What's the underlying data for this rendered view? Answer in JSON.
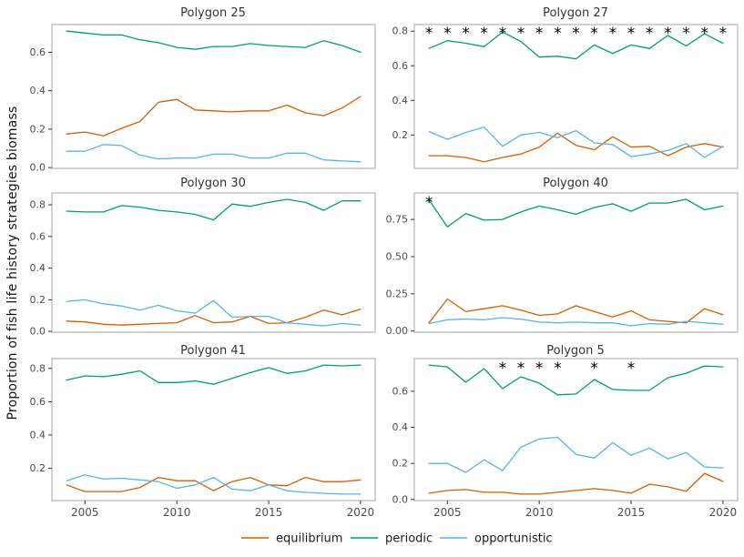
{
  "figure": {
    "y_axis_label": "Proportion of fish life history strategies biomass",
    "x_ticks": [
      2005,
      2010,
      2015,
      2020
    ],
    "x_tick_labels": [
      "2005",
      "2010",
      "2015",
      "2020"
    ],
    "significance_symbol": "*"
  },
  "legend": {
    "items": [
      {
        "label": "equilibrium",
        "color": "#D55E00"
      },
      {
        "label": "periodic",
        "color": "#009E73"
      },
      {
        "label": "opportunistic",
        "color": "#56B4E9"
      }
    ]
  },
  "chart_data": [
    {
      "type": "line",
      "title": "Polygon 25",
      "x": [
        2004,
        2005,
        2006,
        2007,
        2008,
        2009,
        2010,
        2011,
        2012,
        2013,
        2014,
        2015,
        2016,
        2017,
        2018,
        2019,
        2020
      ],
      "xlim": [
        2003.2,
        2020.8
      ],
      "ylim": [
        -0.004,
        0.744
      ],
      "yticks": [
        "0.0",
        "0.2",
        "0.4",
        "0.6"
      ],
      "grid": false,
      "series": [
        {
          "name": "equilibrium",
          "values": [
            0.175,
            0.185,
            0.165,
            0.205,
            0.24,
            0.34,
            0.355,
            0.3,
            0.295,
            0.29,
            0.295,
            0.295,
            0.325,
            0.285,
            0.27,
            0.31,
            0.37
          ]
        },
        {
          "name": "periodic",
          "values": [
            0.71,
            0.7,
            0.69,
            0.69,
            0.665,
            0.65,
            0.625,
            0.615,
            0.63,
            0.63,
            0.645,
            0.635,
            0.63,
            0.625,
            0.66,
            0.635,
            0.6
          ]
        },
        {
          "name": "opportunistic",
          "values": [
            0.085,
            0.085,
            0.12,
            0.115,
            0.065,
            0.045,
            0.05,
            0.05,
            0.07,
            0.07,
            0.05,
            0.05,
            0.075,
            0.075,
            0.04,
            0.035,
            0.03
          ]
        }
      ],
      "significant_years": [],
      "significance_y": null
    },
    {
      "type": "line",
      "title": "Polygon 27",
      "x": [
        2004,
        2005,
        2006,
        2007,
        2008,
        2009,
        2010,
        2011,
        2012,
        2013,
        2014,
        2015,
        2016,
        2017,
        2018,
        2019,
        2020
      ],
      "xlim": [
        2003.2,
        2020.8
      ],
      "ylim": [
        0.007,
        0.838
      ],
      "yticks": [
        "0.2",
        "0.4",
        "0.6",
        "0.8"
      ],
      "grid": false,
      "series": [
        {
          "name": "equilibrium",
          "values": [
            0.08,
            0.08,
            0.07,
            0.045,
            0.07,
            0.09,
            0.13,
            0.21,
            0.14,
            0.115,
            0.19,
            0.13,
            0.135,
            0.08,
            0.13,
            0.15,
            0.13
          ]
        },
        {
          "name": "periodic",
          "values": [
            0.7,
            0.745,
            0.73,
            0.71,
            0.795,
            0.74,
            0.65,
            0.655,
            0.64,
            0.72,
            0.67,
            0.72,
            0.7,
            0.775,
            0.715,
            0.785,
            0.73
          ]
        },
        {
          "name": "opportunistic",
          "values": [
            0.22,
            0.175,
            0.215,
            0.245,
            0.135,
            0.2,
            0.215,
            0.185,
            0.225,
            0.155,
            0.145,
            0.075,
            0.09,
            0.11,
            0.15,
            0.07,
            0.135
          ]
        }
      ],
      "significant_years": [
        2004,
        2005,
        2006,
        2007,
        2008,
        2009,
        2010,
        2011,
        2012,
        2013,
        2014,
        2015,
        2016,
        2017,
        2018,
        2019,
        2020
      ],
      "significance_y": 0.8
    },
    {
      "type": "line",
      "title": "Polygon 30",
      "x": [
        2004,
        2005,
        2006,
        2007,
        2008,
        2009,
        2010,
        2011,
        2012,
        2013,
        2014,
        2015,
        2016,
        2017,
        2018,
        2019,
        2020
      ],
      "xlim": [
        2003.2,
        2020.8
      ],
      "ylim": [
        -0.005,
        0.875
      ],
      "yticks": [
        "0.0",
        "0.2",
        "0.4",
        "0.6",
        "0.8"
      ],
      "grid": false,
      "series": [
        {
          "name": "equilibrium",
          "values": [
            0.065,
            0.06,
            0.045,
            0.04,
            0.045,
            0.05,
            0.055,
            0.1,
            0.055,
            0.06,
            0.095,
            0.05,
            0.055,
            0.09,
            0.135,
            0.105,
            0.14
          ]
        },
        {
          "name": "periodic",
          "values": [
            0.76,
            0.755,
            0.755,
            0.795,
            0.785,
            0.765,
            0.755,
            0.74,
            0.705,
            0.805,
            0.79,
            0.815,
            0.835,
            0.815,
            0.765,
            0.825,
            0.825
          ]
        },
        {
          "name": "opportunistic",
          "values": [
            0.19,
            0.2,
            0.175,
            0.16,
            0.135,
            0.165,
            0.13,
            0.115,
            0.195,
            0.09,
            0.095,
            0.095,
            0.055,
            0.045,
            0.035,
            0.05,
            0.04
          ]
        }
      ],
      "significant_years": [],
      "significance_y": null
    },
    {
      "type": "line",
      "title": "Polygon 40",
      "x": [
        2004,
        2005,
        2006,
        2007,
        2008,
        2009,
        2010,
        2011,
        2012,
        2013,
        2014,
        2015,
        2016,
        2017,
        2018,
        2019,
        2020
      ],
      "xlim": [
        2003.2,
        2020.8
      ],
      "ylim": [
        -0.008,
        0.928
      ],
      "yticks": [
        "0.00",
        "0.25",
        "0.50",
        "0.75"
      ],
      "grid": false,
      "series": [
        {
          "name": "equilibrium",
          "values": [
            0.055,
            0.215,
            0.13,
            0.15,
            0.17,
            0.14,
            0.105,
            0.115,
            0.17,
            0.13,
            0.095,
            0.135,
            0.075,
            0.065,
            0.055,
            0.15,
            0.11
          ]
        },
        {
          "name": "periodic",
          "values": [
            0.88,
            0.7,
            0.79,
            0.745,
            0.75,
            0.8,
            0.84,
            0.815,
            0.785,
            0.83,
            0.855,
            0.805,
            0.86,
            0.86,
            0.885,
            0.815,
            0.84
          ]
        },
        {
          "name": "opportunistic",
          "values": [
            0.05,
            0.075,
            0.08,
            0.075,
            0.09,
            0.08,
            0.06,
            0.055,
            0.06,
            0.055,
            0.055,
            0.035,
            0.05,
            0.045,
            0.065,
            0.055,
            0.045
          ]
        }
      ],
      "significant_years": [
        2004
      ],
      "significance_y": 0.88
    },
    {
      "type": "line",
      "title": "Polygon 41",
      "x": [
        2004,
        2005,
        2006,
        2007,
        2008,
        2009,
        2010,
        2011,
        2012,
        2013,
        2014,
        2015,
        2016,
        2017,
        2018,
        2019,
        2020
      ],
      "xlim": [
        2003.2,
        2020.8
      ],
      "ylim": [
        0.006,
        0.859
      ],
      "yticks": [
        "0.2",
        "0.4",
        "0.6",
        "0.8"
      ],
      "grid": false,
      "series": [
        {
          "name": "equilibrium",
          "values": [
            0.1,
            0.06,
            0.06,
            0.06,
            0.085,
            0.145,
            0.125,
            0.125,
            0.065,
            0.12,
            0.145,
            0.1,
            0.095,
            0.145,
            0.12,
            0.12,
            0.13
          ]
        },
        {
          "name": "periodic",
          "values": [
            0.73,
            0.755,
            0.75,
            0.765,
            0.785,
            0.715,
            0.715,
            0.725,
            0.705,
            0.74,
            0.775,
            0.805,
            0.77,
            0.785,
            0.82,
            0.815,
            0.82
          ]
        },
        {
          "name": "opportunistic",
          "values": [
            0.125,
            0.16,
            0.135,
            0.14,
            0.13,
            0.12,
            0.08,
            0.1,
            0.145,
            0.075,
            0.065,
            0.1,
            0.065,
            0.055,
            0.05,
            0.045,
            0.045
          ]
        }
      ],
      "significant_years": [],
      "significance_y": null
    },
    {
      "type": "line",
      "title": "Polygon 5",
      "x": [
        2004,
        2005,
        2006,
        2007,
        2008,
        2009,
        2010,
        2011,
        2012,
        2013,
        2014,
        2015,
        2016,
        2017,
        2018,
        2019,
        2020
      ],
      "xlim": [
        2003.2,
        2020.8
      ],
      "ylim": [
        -0.006,
        0.781
      ],
      "yticks": [
        "0.0",
        "0.2",
        "0.4",
        "0.6"
      ],
      "grid": false,
      "series": [
        {
          "name": "equilibrium",
          "values": [
            0.035,
            0.05,
            0.055,
            0.04,
            0.04,
            0.03,
            0.03,
            0.04,
            0.05,
            0.06,
            0.05,
            0.035,
            0.085,
            0.07,
            0.045,
            0.145,
            0.1
          ]
        },
        {
          "name": "periodic",
          "values": [
            0.745,
            0.735,
            0.65,
            0.725,
            0.615,
            0.68,
            0.645,
            0.58,
            0.585,
            0.665,
            0.61,
            0.605,
            0.605,
            0.675,
            0.7,
            0.74,
            0.735
          ]
        },
        {
          "name": "opportunistic",
          "values": [
            0.2,
            0.2,
            0.15,
            0.22,
            0.16,
            0.29,
            0.335,
            0.345,
            0.25,
            0.23,
            0.315,
            0.245,
            0.285,
            0.225,
            0.26,
            0.18,
            0.175
          ]
        }
      ],
      "significant_years": [
        2008,
        2009,
        2010,
        2011,
        2013,
        2015
      ],
      "significance_y": 0.74
    }
  ]
}
